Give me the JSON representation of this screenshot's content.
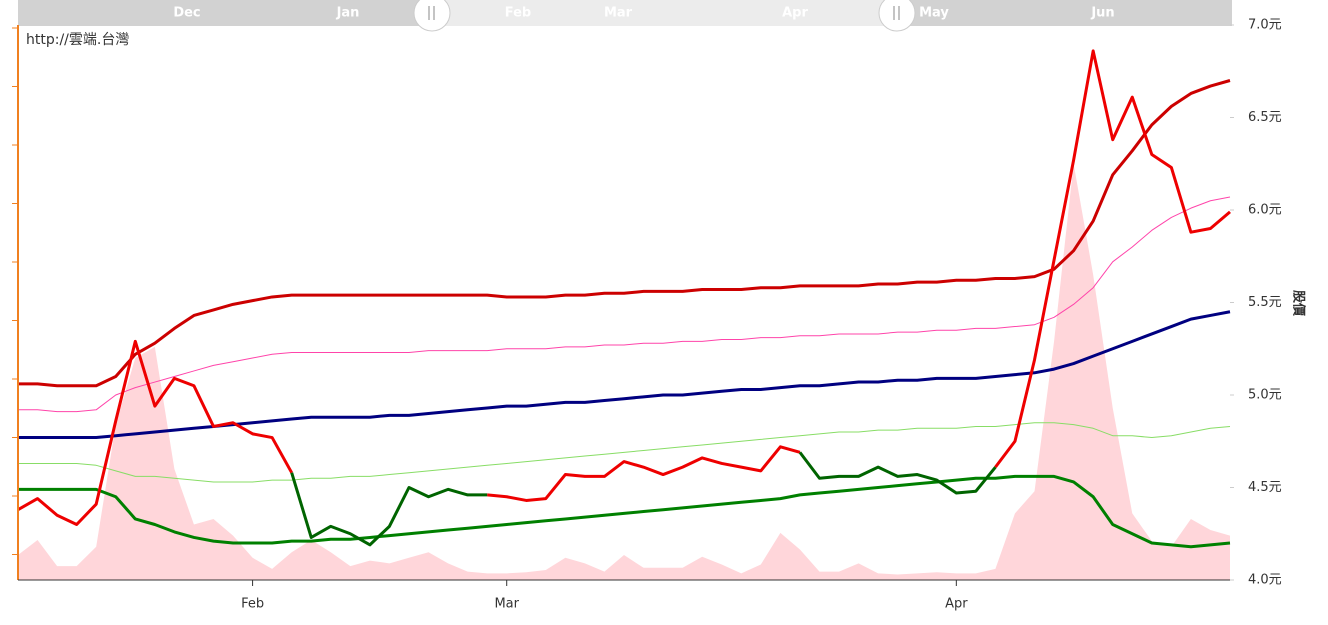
{
  "navigator": {
    "labels": [
      "Dec",
      "Jan",
      "Feb",
      "Mar",
      "Apr",
      "May",
      "Jun"
    ]
  },
  "watermark": "http://雲端.台灣",
  "chart_data": {
    "type": "line",
    "y_label": "股價",
    "categories": [
      null,
      null,
      null,
      null,
      null,
      null,
      null,
      null,
      null,
      null,
      null,
      null,
      "Feb",
      null,
      null,
      null,
      null,
      null,
      null,
      null,
      null,
      null,
      null,
      null,
      null,
      "Mar",
      null,
      null,
      null,
      null,
      null,
      null,
      null,
      null,
      null,
      null,
      null,
      null,
      null,
      null,
      null,
      null,
      null,
      null,
      null,
      null,
      null,
      null,
      "Apr",
      null,
      null,
      null,
      null,
      null,
      null,
      null,
      null,
      null,
      null,
      null,
      null,
      null,
      null
    ],
    "ylim": [
      4.0,
      7.0
    ],
    "yticks": [
      {
        "value": 4.0,
        "label": "4.0元"
      },
      {
        "value": 4.5,
        "label": "4.5元"
      },
      {
        "value": 5.0,
        "label": "5.0元"
      },
      {
        "value": 5.5,
        "label": "5.5元"
      },
      {
        "value": 6.0,
        "label": "6.0元"
      },
      {
        "value": 6.5,
        "label": "6.5元"
      },
      {
        "value": 7.0,
        "label": "7.0元"
      }
    ],
    "y2lim": [
      0,
      10
    ],
    "series": [
      {
        "type": "area",
        "axis": "y2",
        "color": "#ffd6da",
        "values": [
          0.45,
          0.72,
          0.25,
          0.25,
          0.6,
          2.8,
          4.0,
          4.2,
          2.0,
          1.0,
          1.1,
          0.8,
          0.4,
          0.2,
          0.5,
          0.72,
          0.5,
          0.25,
          0.35,
          0.3,
          0.4,
          0.5,
          0.3,
          0.15,
          0.12,
          0.12,
          0.14,
          0.18,
          0.4,
          0.3,
          0.15,
          0.45,
          0.22,
          0.22,
          0.22,
          0.42,
          0.28,
          0.12,
          0.28,
          0.85,
          0.55,
          0.15,
          0.15,
          0.3,
          0.12,
          0.1,
          0.12,
          0.14,
          0.12,
          0.12,
          0.2,
          1.2,
          1.6,
          4.3,
          7.5,
          5.5,
          3.1,
          1.2,
          0.7,
          0.6,
          1.1,
          0.9,
          0.8
        ]
      },
      {
        "type": "line",
        "color": "#ff44aa",
        "line_width": 1,
        "values": [
          4.92,
          4.92,
          4.91,
          4.91,
          4.92,
          5.0,
          5.04,
          5.07,
          5.1,
          5.13,
          5.16,
          5.18,
          5.2,
          5.22,
          5.23,
          5.23,
          5.23,
          5.23,
          5.23,
          5.23,
          5.23,
          5.24,
          5.24,
          5.24,
          5.24,
          5.25,
          5.25,
          5.25,
          5.26,
          5.26,
          5.27,
          5.27,
          5.28,
          5.28,
          5.29,
          5.29,
          5.3,
          5.3,
          5.31,
          5.31,
          5.32,
          5.32,
          5.33,
          5.33,
          5.33,
          5.34,
          5.34,
          5.35,
          5.35,
          5.36,
          5.36,
          5.37,
          5.38,
          5.42,
          5.49,
          5.58,
          5.72,
          5.8,
          5.89,
          5.96,
          6.01,
          6.05,
          6.07
        ]
      },
      {
        "type": "line",
        "color": "#88dd66",
        "line_width": 1,
        "values": [
          4.63,
          4.63,
          4.63,
          4.63,
          4.62,
          4.59,
          4.56,
          4.56,
          4.55,
          4.54,
          4.53,
          4.53,
          4.53,
          4.54,
          4.54,
          4.55,
          4.55,
          4.56,
          4.56,
          4.57,
          4.58,
          4.59,
          4.6,
          4.61,
          4.62,
          4.63,
          4.64,
          4.65,
          4.66,
          4.67,
          4.68,
          4.69,
          4.7,
          4.71,
          4.72,
          4.73,
          4.74,
          4.75,
          4.76,
          4.77,
          4.78,
          4.79,
          4.8,
          4.8,
          4.81,
          4.81,
          4.82,
          4.82,
          4.82,
          4.83,
          4.83,
          4.84,
          4.85,
          4.85,
          4.84,
          4.82,
          4.78,
          4.78,
          4.77,
          4.78,
          4.8,
          4.82,
          4.83
        ]
      },
      {
        "type": "line",
        "color": "#cc0000",
        "line_width": 3,
        "values": [
          5.06,
          5.06,
          5.05,
          5.05,
          5.05,
          5.1,
          5.22,
          5.28,
          5.36,
          5.43,
          5.46,
          5.49,
          5.51,
          5.53,
          5.54,
          5.54,
          5.54,
          5.54,
          5.54,
          5.54,
          5.54,
          5.54,
          5.54,
          5.54,
          5.54,
          5.53,
          5.53,
          5.53,
          5.54,
          5.54,
          5.55,
          5.55,
          5.56,
          5.56,
          5.56,
          5.57,
          5.57,
          5.57,
          5.58,
          5.58,
          5.59,
          5.59,
          5.59,
          5.59,
          5.6,
          5.6,
          5.61,
          5.61,
          5.62,
          5.62,
          5.63,
          5.63,
          5.64,
          5.68,
          5.78,
          5.94,
          6.19,
          6.32,
          6.46,
          6.56,
          6.63,
          6.67,
          6.7
        ]
      },
      {
        "type": "line",
        "color": "#000080",
        "line_width": 3,
        "values": [
          4.77,
          4.77,
          4.77,
          4.77,
          4.77,
          4.78,
          4.79,
          4.8,
          4.81,
          4.82,
          4.83,
          4.84,
          4.85,
          4.86,
          4.87,
          4.88,
          4.88,
          4.88,
          4.88,
          4.89,
          4.89,
          4.9,
          4.91,
          4.92,
          4.93,
          4.94,
          4.94,
          4.95,
          4.96,
          4.96,
          4.97,
          4.98,
          4.99,
          5.0,
          5.0,
          5.01,
          5.02,
          5.03,
          5.03,
          5.04,
          5.05,
          5.05,
          5.06,
          5.07,
          5.07,
          5.08,
          5.08,
          5.09,
          5.09,
          5.09,
          5.1,
          5.11,
          5.12,
          5.14,
          5.17,
          5.21,
          5.25,
          5.29,
          5.33,
          5.37,
          5.41,
          5.43,
          5.45
        ]
      },
      {
        "type": "line",
        "color": "#008000",
        "line_width": 3,
        "values": [
          4.49,
          4.49,
          4.49,
          4.49,
          4.49,
          4.45,
          4.33,
          4.3,
          4.26,
          4.23,
          4.21,
          4.2,
          4.2,
          4.2,
          4.21,
          4.21,
          4.22,
          4.22,
          4.23,
          4.24,
          4.25,
          4.26,
          4.27,
          4.28,
          4.29,
          4.3,
          4.31,
          4.32,
          4.33,
          4.34,
          4.35,
          4.36,
          4.37,
          4.38,
          4.39,
          4.4,
          4.41,
          4.42,
          4.43,
          4.44,
          4.46,
          4.47,
          4.48,
          4.49,
          4.5,
          4.51,
          4.52,
          4.53,
          4.54,
          4.55,
          4.55,
          4.56,
          4.56,
          4.56,
          4.53,
          4.45,
          4.3,
          4.25,
          4.2,
          4.19,
          4.18,
          4.19,
          4.2
        ]
      },
      {
        "type": "line",
        "color": "#ee0000",
        "line_width": 3,
        "values": [
          4.38,
          4.44,
          4.35,
          4.3,
          4.41,
          4.86,
          5.29,
          4.94,
          5.09,
          5.05,
          4.83,
          4.85,
          4.79,
          4.77,
          4.58,
          null,
          null,
          null,
          null,
          null,
          null,
          null,
          null,
          null,
          4.46,
          4.45,
          4.43,
          4.44,
          4.57,
          4.56,
          4.56,
          4.64,
          4.61,
          4.57,
          4.61,
          4.66,
          4.63,
          4.61,
          4.59,
          4.72,
          4.69,
          null,
          null,
          null,
          null,
          null,
          null,
          null,
          null,
          null,
          4.61,
          4.75,
          5.19,
          5.73,
          6.27,
          6.86,
          6.38,
          6.61,
          6.3,
          6.23,
          5.88,
          5.9,
          5.99
        ]
      },
      {
        "type": "line",
        "color": "#006400",
        "line_width": 3,
        "values": [
          null,
          null,
          null,
          null,
          null,
          null,
          null,
          null,
          null,
          null,
          null,
          null,
          null,
          null,
          4.58,
          4.23,
          4.29,
          4.25,
          4.19,
          4.29,
          4.5,
          4.45,
          4.49,
          4.46,
          4.46,
          null,
          null,
          null,
          null,
          null,
          null,
          null,
          null,
          null,
          null,
          null,
          null,
          null,
          null,
          null,
          4.69,
          4.55,
          4.56,
          4.56,
          4.61,
          4.56,
          4.57,
          4.54,
          4.47,
          4.48,
          4.61,
          null,
          null,
          null,
          null,
          null,
          null,
          null,
          null,
          null,
          null,
          null,
          null
        ]
      }
    ]
  }
}
